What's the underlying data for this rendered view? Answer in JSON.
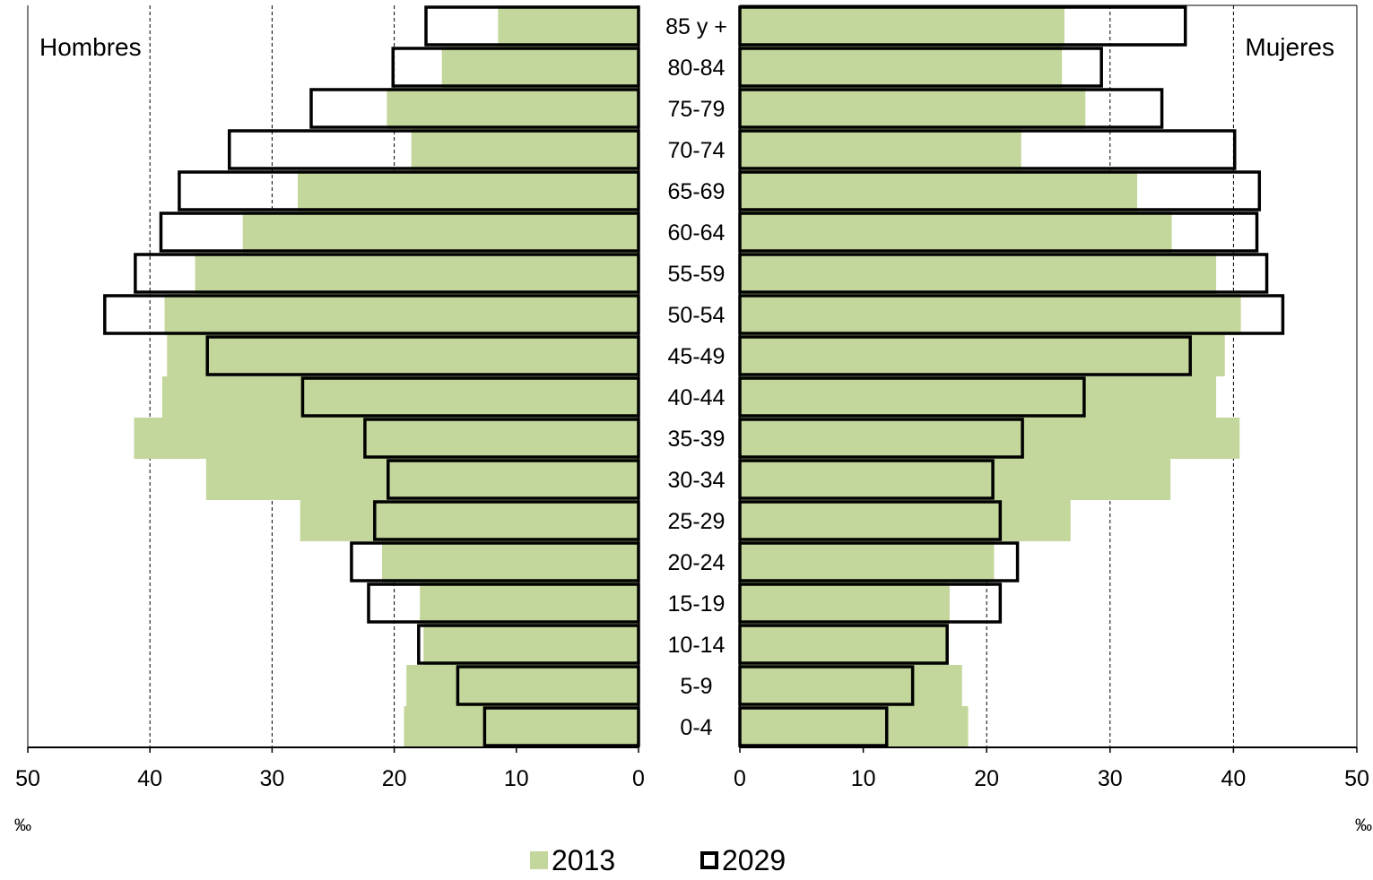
{
  "chart_data": {
    "type": "bar",
    "orientation": "horizontal",
    "layout": "population-pyramid",
    "unit": "‰",
    "xlim": [
      0,
      50
    ],
    "x_ticks": [
      "0",
      "10",
      "20",
      "30",
      "40",
      "50"
    ],
    "grid": "vertical dashed",
    "panels": {
      "left": "Hombres",
      "right": "Mujeres"
    },
    "categories": [
      "85 y +",
      "80-84",
      "75-79",
      "70-74",
      "65-69",
      "60-64",
      "55-59",
      "50-54",
      "45-49",
      "40-44",
      "35-39",
      "30-34",
      "25-29",
      "20-24",
      "15-19",
      "10-14",
      "5-9",
      "0-4"
    ],
    "series": [
      {
        "name": "2013",
        "color": "#c3d69b",
        "style": "filled",
        "hombres": [
          11.5,
          16.1,
          20.6,
          18.6,
          27.9,
          32.4,
          36.3,
          38.8,
          38.6,
          39.0,
          41.3,
          35.4,
          27.7,
          21.0,
          17.9,
          17.6,
          19.0,
          19.2
        ],
        "mujeres": [
          26.3,
          26.1,
          28.0,
          22.8,
          32.2,
          35.0,
          38.6,
          40.6,
          39.3,
          38.6,
          40.5,
          34.9,
          26.8,
          20.6,
          17.0,
          16.9,
          18.0,
          18.5
        ]
      },
      {
        "name": "2029",
        "color": "#000000",
        "style": "outline",
        "hombres": [
          17.4,
          20.1,
          26.8,
          33.5,
          37.6,
          39.1,
          41.2,
          43.7,
          35.3,
          27.5,
          22.4,
          20.5,
          21.6,
          23.5,
          22.1,
          18.0,
          14.8,
          12.6
        ],
        "mujeres": [
          36.1,
          29.3,
          34.2,
          40.1,
          42.1,
          41.9,
          42.7,
          44.0,
          36.5,
          27.9,
          22.9,
          20.5,
          21.1,
          22.5,
          21.1,
          16.8,
          14.0,
          11.9
        ]
      }
    ]
  },
  "legend": {
    "item_2013": "2013",
    "item_2029": "2029"
  }
}
